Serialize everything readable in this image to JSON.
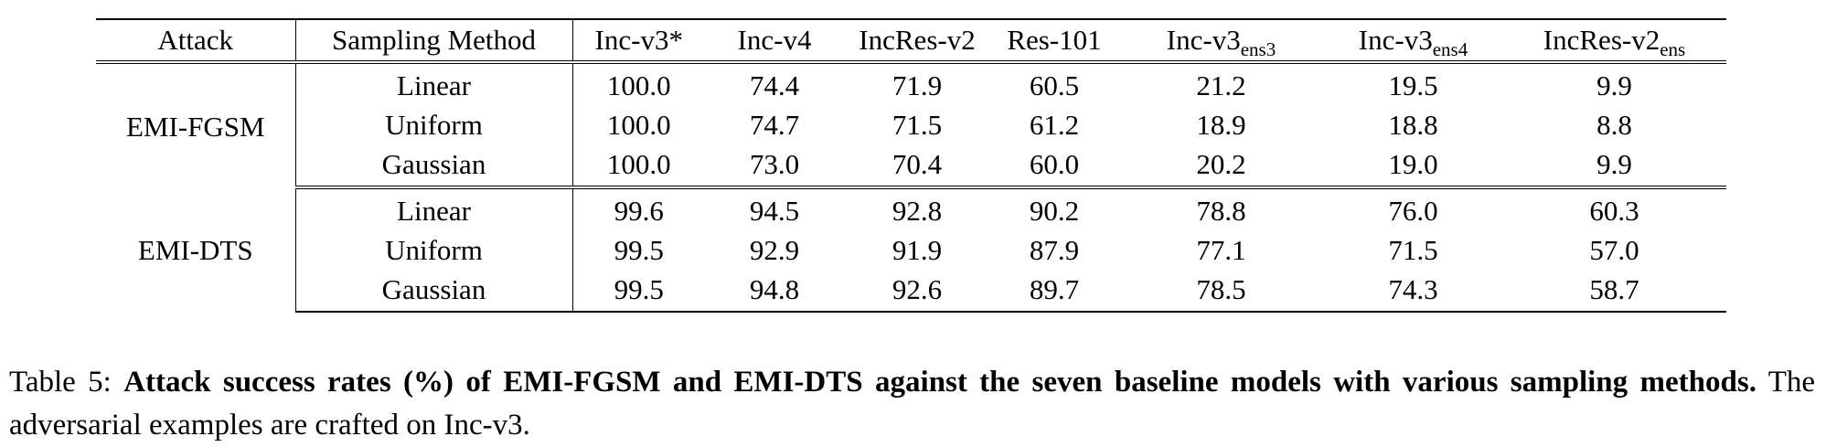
{
  "table": {
    "headers": [
      {
        "main": "Attack",
        "sub": ""
      },
      {
        "main": "Sampling Method",
        "sub": ""
      },
      {
        "main": "Inc-v3*",
        "sub": ""
      },
      {
        "main": "Inc-v4",
        "sub": ""
      },
      {
        "main": "IncRes-v2",
        "sub": ""
      },
      {
        "main": "Res-101",
        "sub": ""
      },
      {
        "main": "Inc-v3",
        "sub": "ens3"
      },
      {
        "main": "Inc-v3",
        "sub": "ens4"
      },
      {
        "main": "IncRes-v2",
        "sub": "ens"
      }
    ],
    "groups": [
      {
        "attack": "EMI-FGSM",
        "rows": [
          {
            "method": "Linear",
            "values": [
              "100.0",
              "74.4",
              "71.9",
              "60.5",
              "21.2",
              "19.5",
              "9.9"
            ],
            "bold": [
              true,
              false,
              true,
              false,
              true,
              true,
              true
            ]
          },
          {
            "method": "Uniform",
            "values": [
              "100.0",
              "74.7",
              "71.5",
              "61.2",
              "18.9",
              "18.8",
              "8.8"
            ],
            "bold": [
              true,
              true,
              false,
              true,
              false,
              false,
              false
            ]
          },
          {
            "method": "Gaussian",
            "values": [
              "100.0",
              "73.0",
              "70.4",
              "60.0",
              "20.2",
              "19.0",
              "9.9"
            ],
            "bold": [
              true,
              false,
              false,
              false,
              false,
              false,
              true
            ]
          }
        ]
      },
      {
        "attack": "EMI-DTS",
        "rows": [
          {
            "method": "Linear",
            "values": [
              "99.6",
              "94.5",
              "92.8",
              "90.2",
              "78.8",
              "76.0",
              "60.3"
            ],
            "bold": [
              true,
              false,
              true,
              true,
              true,
              true,
              true
            ]
          },
          {
            "method": "Uniform",
            "values": [
              "99.5",
              "92.9",
              "91.9",
              "87.9",
              "77.1",
              "71.5",
              "57.0"
            ],
            "bold": [
              false,
              false,
              false,
              false,
              false,
              false,
              false
            ]
          },
          {
            "method": "Gaussian",
            "values": [
              "99.5",
              "94.8",
              "92.6",
              "89.7",
              "78.5",
              "74.3",
              "58.7"
            ],
            "bold": [
              false,
              true,
              false,
              false,
              false,
              false,
              false
            ]
          }
        ]
      }
    ]
  },
  "caption": {
    "label": "Table 5: ",
    "bold_text": "Attack success rates (%) of EMI-FGSM and EMI-DTS against the seven baseline models with various sampling methods.",
    "rest_text": " The adversarial examples are crafted on Inc-v3."
  }
}
